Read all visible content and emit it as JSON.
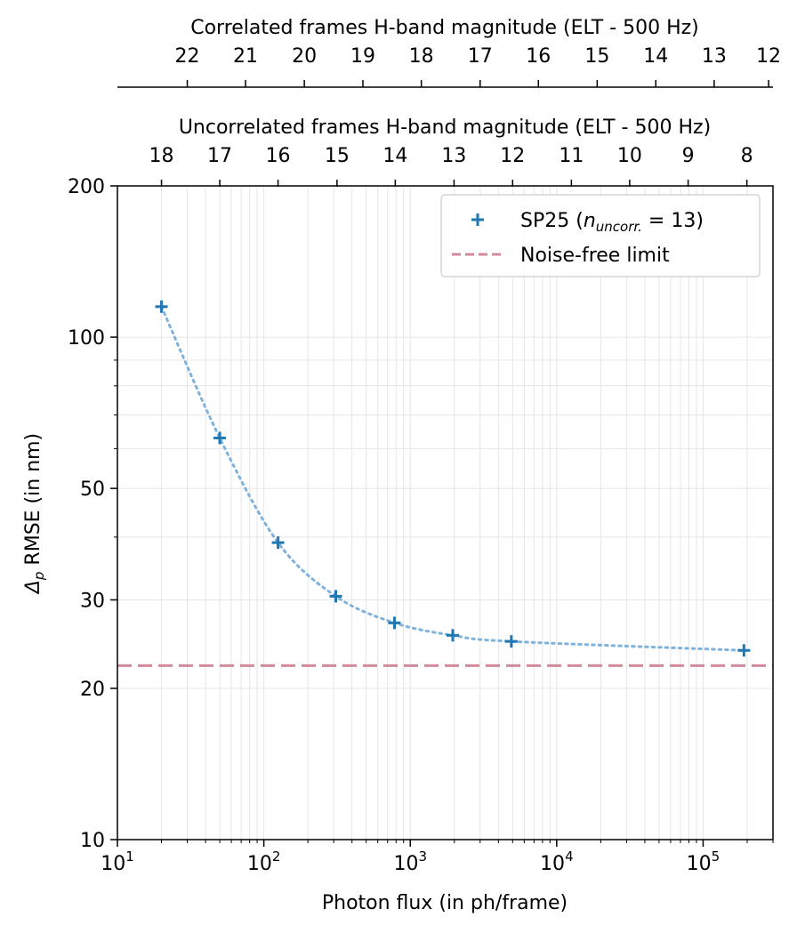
{
  "chart_data": {
    "type": "scatter",
    "xlabel": "Photon flux (in ph/frame)",
    "ylabel_symbol": "Δ",
    "ylabel_sub": "p",
    "ylabel_rest": " RMSE (in nm)",
    "xscale": "log",
    "yscale": "log",
    "xlim": [
      10,
      300000
    ],
    "ylim": [
      10,
      200
    ],
    "grid": true,
    "x_ticks": [
      {
        "value": 10,
        "base": "10",
        "exp": "1"
      },
      {
        "value": 100,
        "base": "10",
        "exp": "2"
      },
      {
        "value": 1000,
        "base": "10",
        "exp": "3"
      },
      {
        "value": 10000,
        "base": "10",
        "exp": "4"
      },
      {
        "value": 100000,
        "base": "10",
        "exp": "5"
      }
    ],
    "y_ticks": [
      {
        "value": 10,
        "label": "10"
      },
      {
        "value": 20,
        "label": "20"
      },
      {
        "value": 30,
        "label": "30"
      },
      {
        "value": 50,
        "label": "50"
      },
      {
        "value": 100,
        "label": "100"
      },
      {
        "value": 200,
        "label": "200"
      }
    ],
    "series": [
      {
        "name": "SP25",
        "legend_prefix": "SP25 (",
        "legend_math": "n",
        "legend_sub": "uncorr.",
        "legend_suffix": " = 13)",
        "color": "#1f77b4",
        "marker": "plus",
        "x": [
          20,
          50,
          125,
          310,
          780,
          1950,
          4900,
          190000
        ],
        "y": [
          115,
          63,
          39,
          30.5,
          27,
          25.5,
          24.8,
          23.8
        ]
      }
    ],
    "reference_line": {
      "label": "Noise-free limit",
      "y": 22.2,
      "color": "#d08a9b",
      "style": "dashed"
    },
    "legend_position": "top-right",
    "secondary_axes": [
      {
        "title": "Uncorrelated frames H-band magnitude (ELT - 500 Hz)",
        "ticks": [
          {
            "value": 18,
            "x": 20
          },
          {
            "value": 17,
            "x": 50
          },
          {
            "value": 16,
            "x": 125
          },
          {
            "value": 15,
            "x": 316
          },
          {
            "value": 14,
            "x": 790
          },
          {
            "value": 13,
            "x": 1990
          },
          {
            "value": 12,
            "x": 5000
          },
          {
            "value": 11,
            "x": 12600
          },
          {
            "value": 10,
            "x": 31500
          },
          {
            "value": 9,
            "x": 79000
          },
          {
            "value": 8,
            "x": 199000
          }
        ]
      },
      {
        "title": "Correlated frames H-band magnitude (ELT - 500 Hz)",
        "ticks": [
          {
            "value": 22,
            "x": 30
          },
          {
            "value": 21,
            "x": 75
          },
          {
            "value": 20,
            "x": 189
          },
          {
            "value": 19,
            "x": 475
          },
          {
            "value": 18,
            "x": 1190
          },
          {
            "value": 17,
            "x": 3000
          },
          {
            "value": 16,
            "x": 7500
          },
          {
            "value": 15,
            "x": 18900
          },
          {
            "value": 14,
            "x": 47500
          },
          {
            "value": 13,
            "x": 119000
          },
          {
            "value": 12,
            "x": 280000
          }
        ]
      }
    ]
  }
}
